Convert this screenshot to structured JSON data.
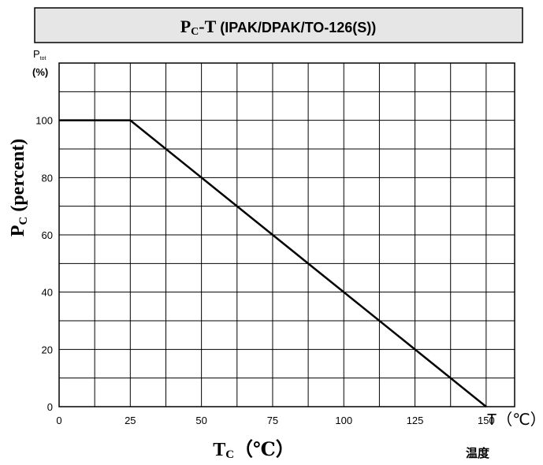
{
  "chart_data": {
    "type": "line",
    "title": {
      "main": "P",
      "main_sub": "C",
      "dash_t": "-T",
      "rest": " (IPAK/DPAK/TO-126(S))"
    },
    "ylabel": {
      "main": "P",
      "sub": "C",
      "rest": " (percent)"
    },
    "y_axis_tag": {
      "p": "P",
      "sub": "tot",
      "unit": "(%)"
    },
    "xlabel": {
      "main": "T",
      "sub": "C",
      "rest": "（℃）"
    },
    "x_axis_tag": "T（℃）",
    "x_axis_note": "温度",
    "xlim": [
      0,
      160
    ],
    "ylim": [
      0,
      100
    ],
    "x_ticks": [
      0,
      25,
      50,
      75,
      100,
      125,
      150
    ],
    "y_ticks": [
      0,
      20,
      40,
      60,
      80,
      100
    ],
    "grid": true,
    "series": [
      {
        "x": [
          0,
          25,
          150
        ],
        "y": [
          100,
          100,
          0
        ]
      }
    ],
    "colors": {
      "line": "#000000",
      "grid": "#000000",
      "title_box_fill": "#e6e6e6"
    }
  }
}
